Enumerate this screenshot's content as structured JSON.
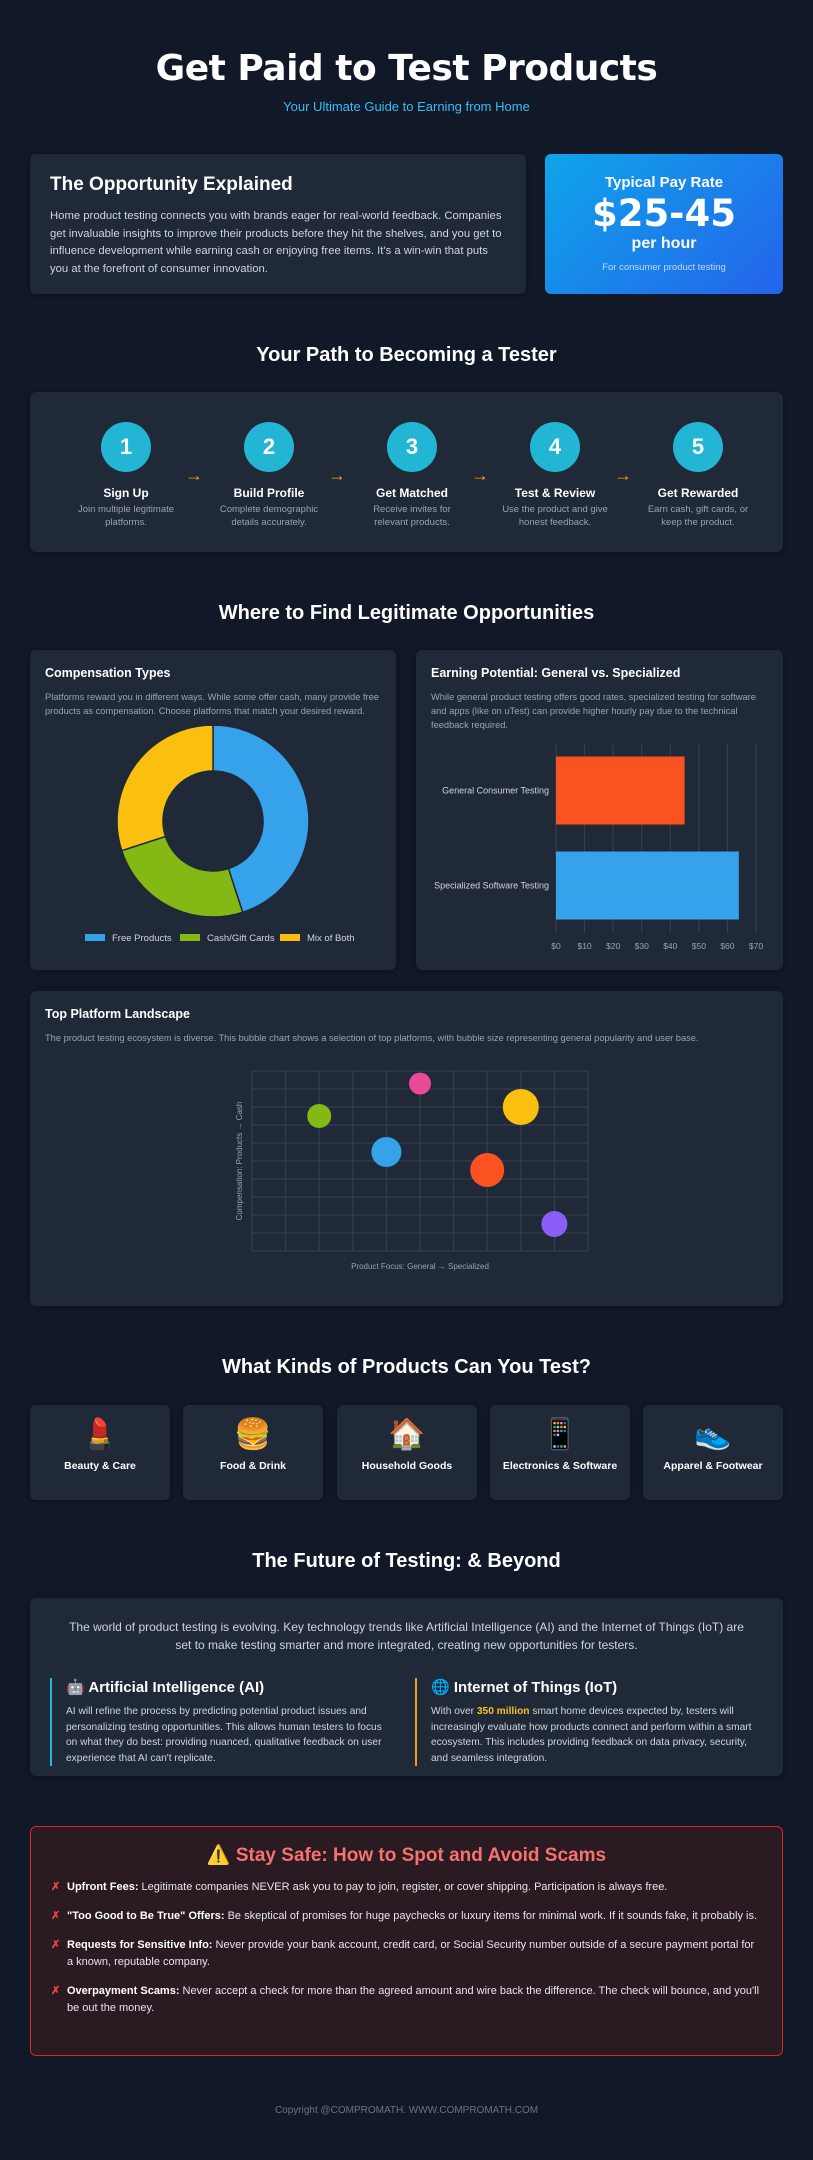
{
  "header": {
    "title": "Get Paid to Test Products",
    "subtitle": "Your Ultimate Guide to Earning from Home"
  },
  "opportunity": {
    "title": "The Opportunity Explained",
    "body": "Home product testing connects you with brands eager for real-world feedback. Companies get invaluable insights to improve their products before they hit the shelves, and you get to influence development while earning cash or enjoying free items. It's a win-win that puts you at the forefront of consumer innovation."
  },
  "pay": {
    "label": "Typical Pay Rate",
    "value": "$25-45",
    "unit": "per hour",
    "note": "For consumer product testing"
  },
  "path": {
    "title": "Your Path to Becoming a Tester",
    "steps": [
      {
        "num": "1",
        "title": "Sign Up",
        "desc": "Join multiple legitimate platforms."
      },
      {
        "num": "2",
        "title": "Build Profile",
        "desc": "Complete demographic details accurately."
      },
      {
        "num": "3",
        "title": "Get Matched",
        "desc": "Receive invites for relevant products."
      },
      {
        "num": "4",
        "title": "Test & Review",
        "desc": "Use the product and give honest feedback."
      },
      {
        "num": "5",
        "title": "Get Rewarded",
        "desc": "Earn cash, gift cards, or keep the product."
      }
    ],
    "arrow": "→"
  },
  "find": {
    "title": "Where to Find Legitimate Opportunities"
  },
  "compensation": {
    "title": "Compensation Types",
    "desc": "Platforms reward you in different ways. While some offer cash, many provide free products as compensation. Choose platforms that match your desired reward."
  },
  "earning": {
    "title": "Earning Potential: General vs. Specialized",
    "desc": "While general product testing offers good rates, specialized testing for software and apps (like on uTest) can provide higher hourly pay due to the technical feedback required."
  },
  "landscape": {
    "title": "Top Platform Landscape",
    "desc": "The product testing ecosystem is diverse. This bubble chart shows a selection of top platforms, with bubble size representing general popularity and user base."
  },
  "chart_data": [
    {
      "type": "pie",
      "title": "Compensation Types",
      "labels": [
        "Free Products",
        "Cash/Gift Cards",
        "Mix of Both"
      ],
      "values": [
        45,
        25,
        30
      ],
      "colors": [
        "#36a2eb",
        "#84b814",
        "#fbbf0f"
      ],
      "legend": "bottom"
    },
    {
      "type": "bar",
      "orientation": "horizontal",
      "title": "Earning Potential: General vs. Specialized",
      "categories": [
        "General Consumer Testing",
        "Specialized Software Testing"
      ],
      "values": [
        45,
        64
      ],
      "colors": [
        "#fb5221",
        "#36a2eb"
      ],
      "xlim": [
        0,
        70
      ],
      "xticks": [
        "$0",
        "$10",
        "$20",
        "$30",
        "$40",
        "$50",
        "$60",
        "$70"
      ],
      "grid": true
    },
    {
      "type": "scatter",
      "title": "Top Platform Landscape",
      "xlabel": "Product Focus: General → Specialized",
      "ylabel": "Compensation: Products → Cash",
      "xlim": [
        0,
        10
      ],
      "ylim": [
        0,
        10
      ],
      "points": [
        {
          "x": 2.0,
          "y": 7.5,
          "r": 12,
          "color": "#84b814"
        },
        {
          "x": 5.0,
          "y": 9.3,
          "r": 11,
          "color": "#ec4899"
        },
        {
          "x": 4.0,
          "y": 5.5,
          "r": 15,
          "color": "#36a2eb"
        },
        {
          "x": 8.0,
          "y": 8.0,
          "r": 18,
          "color": "#fbbf0f"
        },
        {
          "x": 7.0,
          "y": 4.5,
          "r": 17,
          "color": "#fb5221"
        },
        {
          "x": 9.0,
          "y": 1.5,
          "r": 13,
          "color": "#8b5cf6"
        }
      ],
      "grid": true
    }
  ],
  "products": {
    "title": "What Kinds of Products Can You Test?",
    "items": [
      {
        "icon": "💄",
        "label": "Beauty & Care"
      },
      {
        "icon": "🍔",
        "label": "Food & Drink"
      },
      {
        "icon": "🏠",
        "label": "Household Goods"
      },
      {
        "icon": "📱",
        "label": "Electronics & Software"
      },
      {
        "icon": "👟",
        "label": "Apparel & Footwear"
      }
    ]
  },
  "future": {
    "title": "The Future of Testing: & Beyond",
    "intro": "The world of product testing is evolving. Key technology trends like Artificial Intelligence (AI) and the Internet of Things (IoT) are set to make testing smarter and more integrated, creating new opportunities for testers.",
    "ai": {
      "icon": "🤖",
      "title": "Artificial Intelligence (AI)",
      "body": "AI will refine the process by predicting potential product issues and personalizing testing opportunities. This allows human testers to focus on what they do best: providing nuanced, qualitative feedback on user experience that AI can't replicate.",
      "color": "#22b5d4"
    },
    "iot": {
      "icon": "🌐",
      "title": "Internet of Things (IoT)",
      "body_pre": "With over ",
      "highlight": "350 million",
      "body_post": " smart home devices expected by, testers will increasingly evaluate how products connect and perform within a smart ecosystem. This includes providing feedback on data privacy, security, and seamless integration.",
      "color": "#f59e0b"
    }
  },
  "scams": {
    "title": "⚠️ Stay Safe: How to Spot and Avoid Scams",
    "marker": "✗",
    "items": [
      {
        "lead": "Upfront Fees:",
        "text": " Legitimate companies NEVER ask you to pay to join, register, or cover shipping. Participation is always free."
      },
      {
        "lead": "\"Too Good to Be True\" Offers:",
        "text": " Be skeptical of promises for huge paychecks or luxury items for minimal work. If it sounds fake, it probably is."
      },
      {
        "lead": "Requests for Sensitive Info:",
        "text": " Never provide your bank account, credit card, or Social Security number outside of a secure payment portal for a known, reputable company."
      },
      {
        "lead": "Overpayment Scams:",
        "text": " Never accept a check for more than the agreed amount and wire back the difference. The check will bounce, and you'll be out the money."
      }
    ]
  },
  "footer": {
    "text": "Copyright @COMPROMATH. WWW.COMPROMATH.COM"
  }
}
